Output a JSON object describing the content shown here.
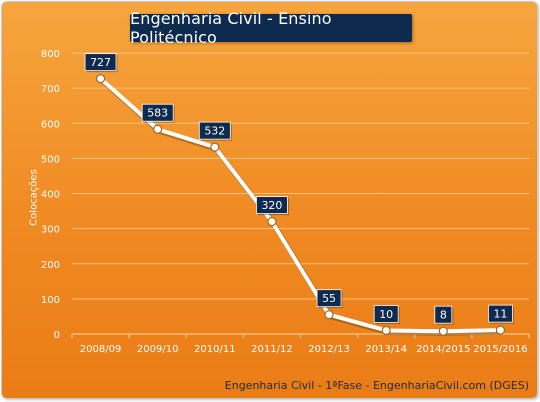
{
  "chart_data": {
    "type": "line",
    "title": "Engenharia Civil - Ensino Politécnico",
    "ylabel": "Colocações",
    "xlabel": "",
    "categories": [
      "2008/09",
      "2009/10",
      "2010/11",
      "2011/12",
      "2012/13",
      "2013/14",
      "2014/2015",
      "2015/2016"
    ],
    "values": [
      727,
      583,
      532,
      320,
      55,
      10,
      8,
      11
    ],
    "ylim": [
      0,
      800
    ],
    "yticks": [
      "0",
      "100",
      "200",
      "300",
      "400",
      "500",
      "600",
      "700",
      "800"
    ],
    "grid": true,
    "colors": {
      "line": "#ffffff",
      "label_bg": "#0f2a4f",
      "label_text": "#ffffff",
      "tick_text": "#ffffff",
      "gridline": "#f7c27e"
    }
  },
  "footer": "Engenharia Civil - 1ªFase - EngenhariaCivil.com (DGES)"
}
